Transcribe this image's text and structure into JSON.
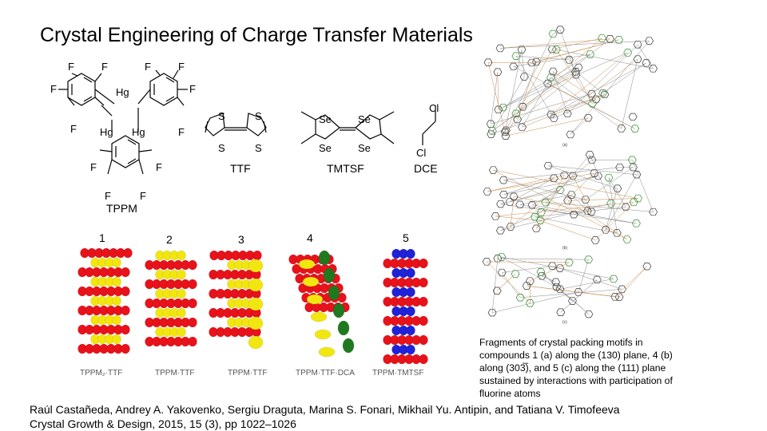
{
  "slide": {
    "title": "Crystal Engineering of Charge Transfer Materials"
  },
  "molecules": {
    "atoms": {
      "F": "F",
      "Hg": "Hg",
      "S": "S",
      "Se": "Se",
      "Cl": "Cl"
    },
    "names": [
      "TPPM",
      "TTF",
      "TMTSF",
      "DCE"
    ]
  },
  "stacks": {
    "numbers": [
      "1",
      "2",
      "3",
      "4",
      "5"
    ],
    "labels": [
      "TPPM₂·TTF",
      "TPPM·TTF",
      "TPPM·TTF",
      "TPPM·TTF·DCA",
      "TPPM·TMTSF"
    ],
    "colors": {
      "red": "#e8121a",
      "yellow": "#f2e611",
      "green": "#1f7a1f",
      "blue": "#1f22d8"
    }
  },
  "packing": {
    "labels": [
      "(a)",
      "(b)",
      "(c)"
    ]
  },
  "caption": {
    "lines": [
      "Fragments of crystal packing motifs in",
      "compounds 1 (a) along the (130) plane, 4 (b)",
      "along (303̅), and 5 (c) along the (111) plane",
      "sustained by interactions with participation of",
      "fluorine atoms"
    ]
  },
  "citation": {
    "authors": "Raúl Castañeda, Andrey A. Yakovenko, Sergiu Draguta, Marina S. Fonari, Mikhail Yu. Antipin, and Tatiana V. Timofeeva",
    "journal": "Crystal Growth & Design, 2015, 15 (3), pp 1022–1026"
  }
}
